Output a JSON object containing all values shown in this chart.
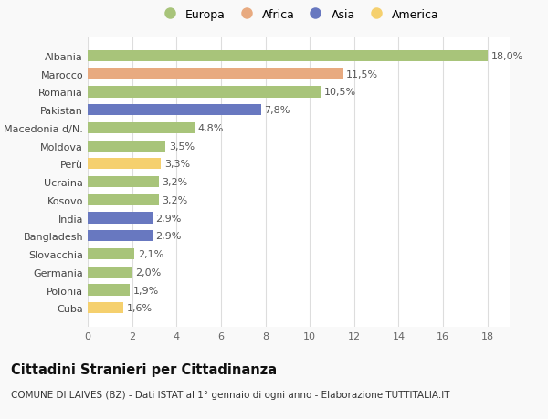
{
  "countries": [
    "Albania",
    "Marocco",
    "Romania",
    "Pakistan",
    "Macedonia d/N.",
    "Moldova",
    "Perù",
    "Ucraina",
    "Kosovo",
    "India",
    "Bangladesh",
    "Slovacchia",
    "Germania",
    "Polonia",
    "Cuba"
  ],
  "values": [
    18.0,
    11.5,
    10.5,
    7.8,
    4.8,
    3.5,
    3.3,
    3.2,
    3.2,
    2.9,
    2.9,
    2.1,
    2.0,
    1.9,
    1.6
  ],
  "labels": [
    "18,0%",
    "11,5%",
    "10,5%",
    "7,8%",
    "4,8%",
    "3,5%",
    "3,3%",
    "3,2%",
    "3,2%",
    "2,9%",
    "2,9%",
    "2,1%",
    "2,0%",
    "1,9%",
    "1,6%"
  ],
  "continents": [
    "Europa",
    "Africa",
    "Europa",
    "Asia",
    "Europa",
    "Europa",
    "America",
    "Europa",
    "Europa",
    "Asia",
    "Asia",
    "Europa",
    "Europa",
    "Europa",
    "America"
  ],
  "colors": {
    "Europa": "#a8c47a",
    "Africa": "#e8aa80",
    "Asia": "#6878c0",
    "America": "#f5d06e"
  },
  "legend_order": [
    "Europa",
    "Africa",
    "Asia",
    "America"
  ],
  "title": "Cittadini Stranieri per Cittadinanza",
  "subtitle": "COMUNE DI LAIVES (BZ) - Dati ISTAT al 1° gennaio di ogni anno - Elaborazione TUTTITALIA.IT",
  "xlim": [
    0,
    19
  ],
  "xticks": [
    0,
    2,
    4,
    6,
    8,
    10,
    12,
    14,
    16,
    18
  ],
  "background_color": "#f9f9f9",
  "plot_bg_color": "#ffffff",
  "grid_color": "#dddddd",
  "bar_label_fontsize": 8,
  "tick_fontsize": 8,
  "ytick_fontsize": 8,
  "legend_fontsize": 9,
  "title_fontsize": 10.5,
  "subtitle_fontsize": 7.5
}
